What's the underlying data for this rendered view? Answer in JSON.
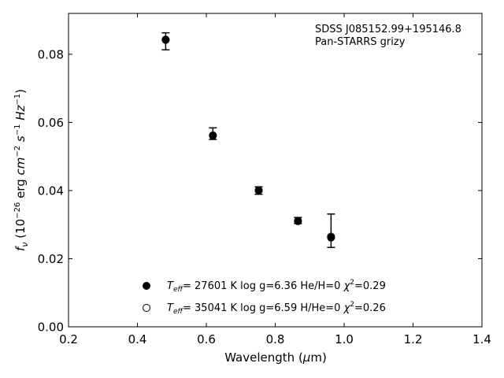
{
  "chart_data": {
    "type": "scatter",
    "xlabel_text": "Wavelength (",
    "xlabel_unit_sym": "μ",
    "xlabel_unit_rest": "m)",
    "ylabel": {
      "f": "f",
      "nu": "ν",
      "open": " (10",
      "exp1": "−26",
      "mid": " erg ",
      "cm": "cm",
      "exp2": "−2",
      "s": " s",
      "exp3": "−1",
      "hz": " Hz",
      "exp4": "−1",
      "close": ")"
    },
    "xlim": [
      0.2,
      1.4
    ],
    "ylim": [
      0.0,
      0.092
    ],
    "xticks": [
      0.2,
      0.4,
      0.6,
      0.8,
      1.0,
      1.2,
      1.4
    ],
    "xtick_labels": [
      "0.2",
      "0.4",
      "0.6",
      "0.8",
      "1.0",
      "1.2",
      "1.4"
    ],
    "yticks": [
      0.0,
      0.02,
      0.04,
      0.06,
      0.08
    ],
    "ytick_labels": [
      "0.00",
      "0.02",
      "0.04",
      "0.06",
      "0.08"
    ],
    "grid": false,
    "annotation": [
      "SDSS J085152.99+195146.8",
      "Pan-STARRS grizy"
    ],
    "observed": [
      {
        "x": 0.482,
        "y": 0.0838,
        "err": 0.0025
      },
      {
        "x": 0.619,
        "y": 0.0567,
        "err": 0.0017
      },
      {
        "x": 0.752,
        "y": 0.04,
        "err": 0.0011
      },
      {
        "x": 0.866,
        "y": 0.0312,
        "err": 0.0009
      },
      {
        "x": 0.962,
        "y": 0.0282,
        "err": 0.0049
      }
    ],
    "series": [
      {
        "name": "T_eff= 27601 K  log g=6.36  He/H=0  χ²=0.29",
        "marker": "filled",
        "x": [
          0.482,
          0.619,
          0.752,
          0.866,
          0.962
        ],
        "y": [
          0.0843,
          0.0562,
          0.0401,
          0.031,
          0.0262
        ]
      },
      {
        "name": "T_eff= 35041 K  log g=6.59  H/He=0  χ²=0.26",
        "marker": "open",
        "x": [
          0.482,
          0.619,
          0.752,
          0.866,
          0.962
        ],
        "y": [
          0.0842,
          0.0561,
          0.04,
          0.0311,
          0.0265
        ]
      }
    ],
    "legend_entries": [
      {
        "T": "T",
        "eff": "eff",
        "rest": "= 27601 K  log g=6.36  He/H=0  ",
        "chi": "χ",
        "chi_exp": "2",
        "chi_val": "=0.29"
      },
      {
        "T": "T",
        "eff": "eff",
        "rest": "= 35041 K  log g=6.59  H/He=0  ",
        "chi": "χ",
        "chi_exp": "2",
        "chi_val": "=0.26"
      }
    ],
    "legend_placement": "bottom-center",
    "colors": {
      "marker": "#000000",
      "axis": "#000000"
    }
  }
}
